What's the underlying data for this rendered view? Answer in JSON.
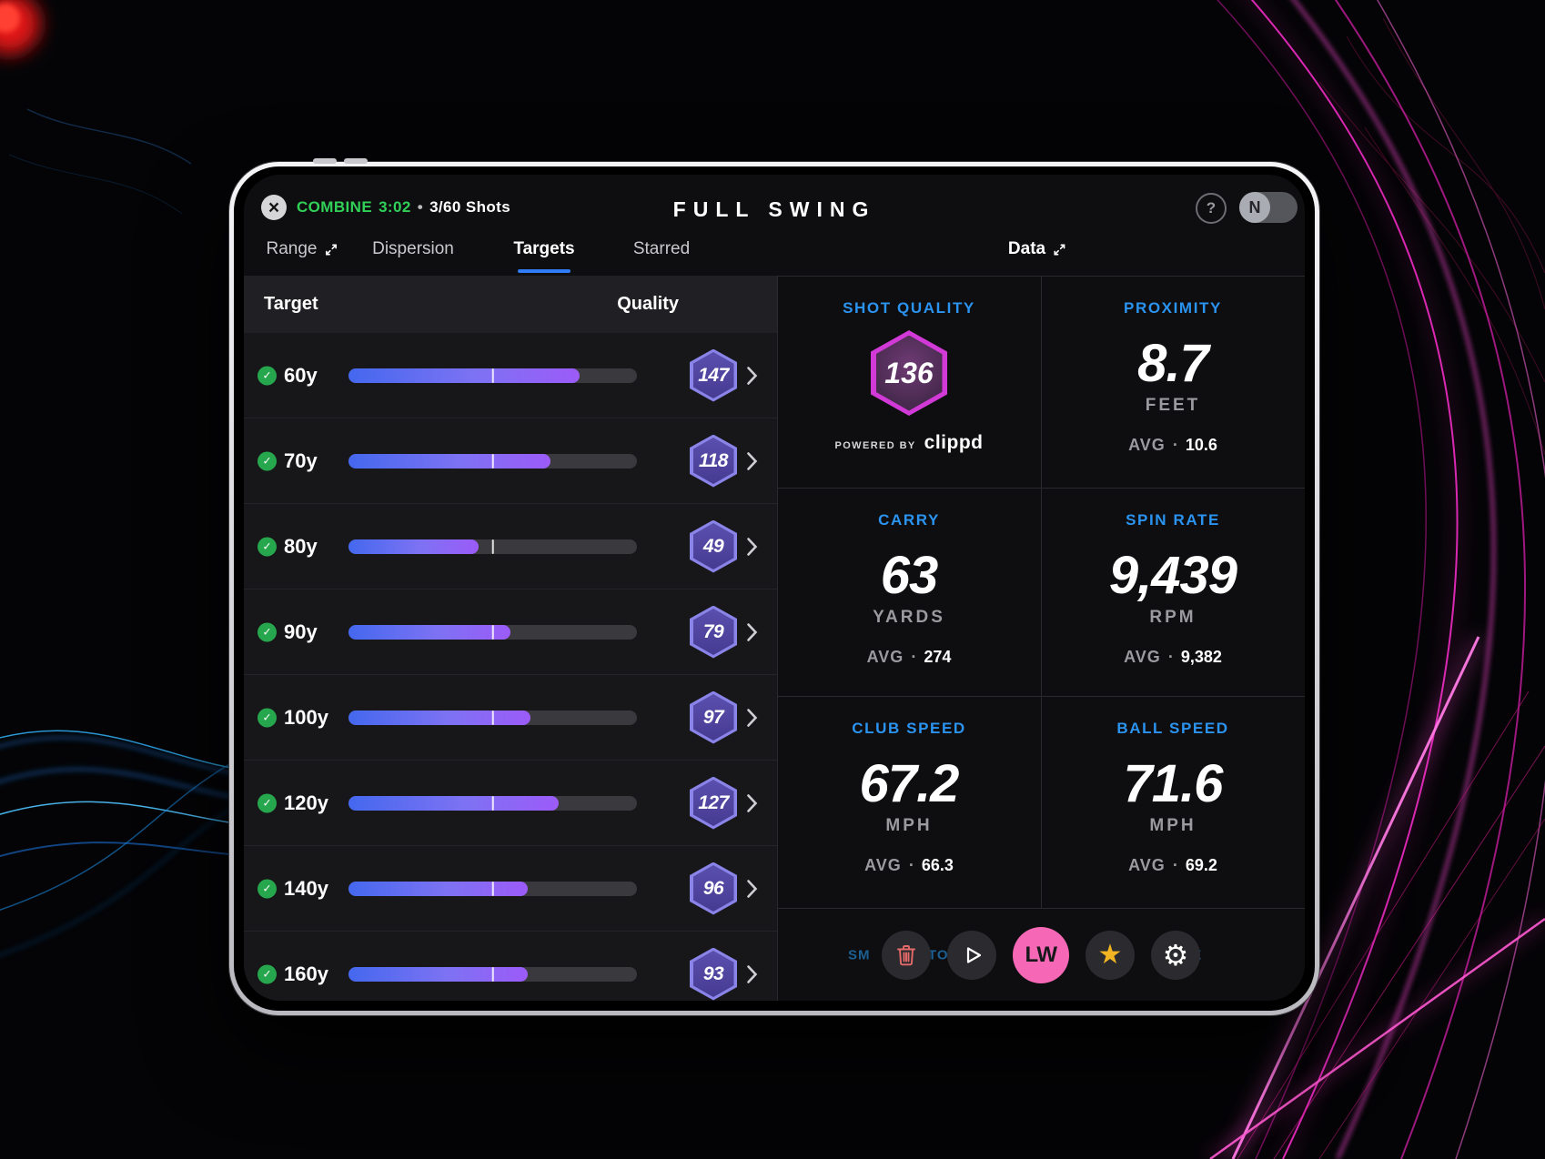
{
  "header": {
    "close_glyph": "×",
    "combine_label": "COMBINE",
    "timer": "3:02",
    "separator": "•",
    "shots_label": "3/60 Shots",
    "brand": "FULL SWING",
    "help_glyph": "?",
    "avatar_initial": "N"
  },
  "tabs": {
    "items": [
      {
        "label": "Range",
        "expand_icon": true,
        "selected": false
      },
      {
        "label": "Dispersion",
        "selected": false
      },
      {
        "label": "Targets",
        "selected": true
      },
      {
        "label": "Starred",
        "selected": false
      }
    ],
    "data_label": "Data"
  },
  "targets_table": {
    "columns": {
      "target": "Target",
      "quality": "Quality"
    },
    "check_glyph": "✓",
    "rows": [
      {
        "target": "60y",
        "quality": "147",
        "fill_pct": 80,
        "tick_pct": 50,
        "completed": true
      },
      {
        "target": "70y",
        "quality": "118",
        "fill_pct": 70,
        "tick_pct": 50,
        "completed": true
      },
      {
        "target": "80y",
        "quality": "49",
        "fill_pct": 45,
        "tick_pct": 50,
        "completed": true
      },
      {
        "target": "90y",
        "quality": "79",
        "fill_pct": 56,
        "tick_pct": 50,
        "completed": true
      },
      {
        "target": "100y",
        "quality": "97",
        "fill_pct": 63,
        "tick_pct": 50,
        "completed": true
      },
      {
        "target": "120y",
        "quality": "127",
        "fill_pct": 73,
        "tick_pct": 50,
        "completed": true
      },
      {
        "target": "140y",
        "quality": "96",
        "fill_pct": 62,
        "tick_pct": 50,
        "completed": true
      },
      {
        "target": "160y",
        "quality": "93",
        "fill_pct": 62,
        "tick_pct": 50,
        "completed": true
      }
    ]
  },
  "data_panel": {
    "tiles": [
      {
        "label": "SHOT QUALITY",
        "value": "136",
        "powered_by": "POWERED BY",
        "powered_brand": "clippd"
      },
      {
        "label": "PROXIMITY",
        "value": "8.7",
        "unit": "FEET",
        "avg_label": "AVG",
        "avg_dot": "·",
        "avg_value": "10.6"
      },
      {
        "label": "CARRY",
        "value": "63",
        "unit": "YARDS",
        "avg_label": "AVG",
        "avg_dot": "·",
        "avg_value": "274"
      },
      {
        "label": "SPIN RATE",
        "value": "9,439",
        "unit": "RPM",
        "avg_label": "AVG",
        "avg_dot": "·",
        "avg_value": "9,382"
      },
      {
        "label": "CLUB SPEED",
        "value": "67.2",
        "unit": "MPH",
        "avg_label": "AVG",
        "avg_dot": "·",
        "avg_value": "66.3"
      },
      {
        "label": "BALL SPEED",
        "value": "71.6",
        "unit": "MPH",
        "avg_label": "AVG",
        "avg_dot": "·",
        "avg_value": "69.2"
      }
    ]
  },
  "bottom_bar": {
    "fragments": [
      "SM",
      "TO",
      "U",
      "LE"
    ],
    "club_label": "LW",
    "star_glyph": "★",
    "gear_glyph": "⚙"
  },
  "colors": {
    "accent_blue": "#2b93f0",
    "tab_underline": "#2f7cf6",
    "combine_green": "#31d158",
    "bar_blue": "#4468ee",
    "bar_purple": "#9c5bf8",
    "hex_border": "#8a83e8",
    "hex_fill": "#4f449e",
    "shot_hex_border": "#d23ad8",
    "pink_button": "#f668b6",
    "star_gold": "#f2b422",
    "trash_red": "#e66a6a",
    "fragment_blue": "#1c5f93"
  }
}
